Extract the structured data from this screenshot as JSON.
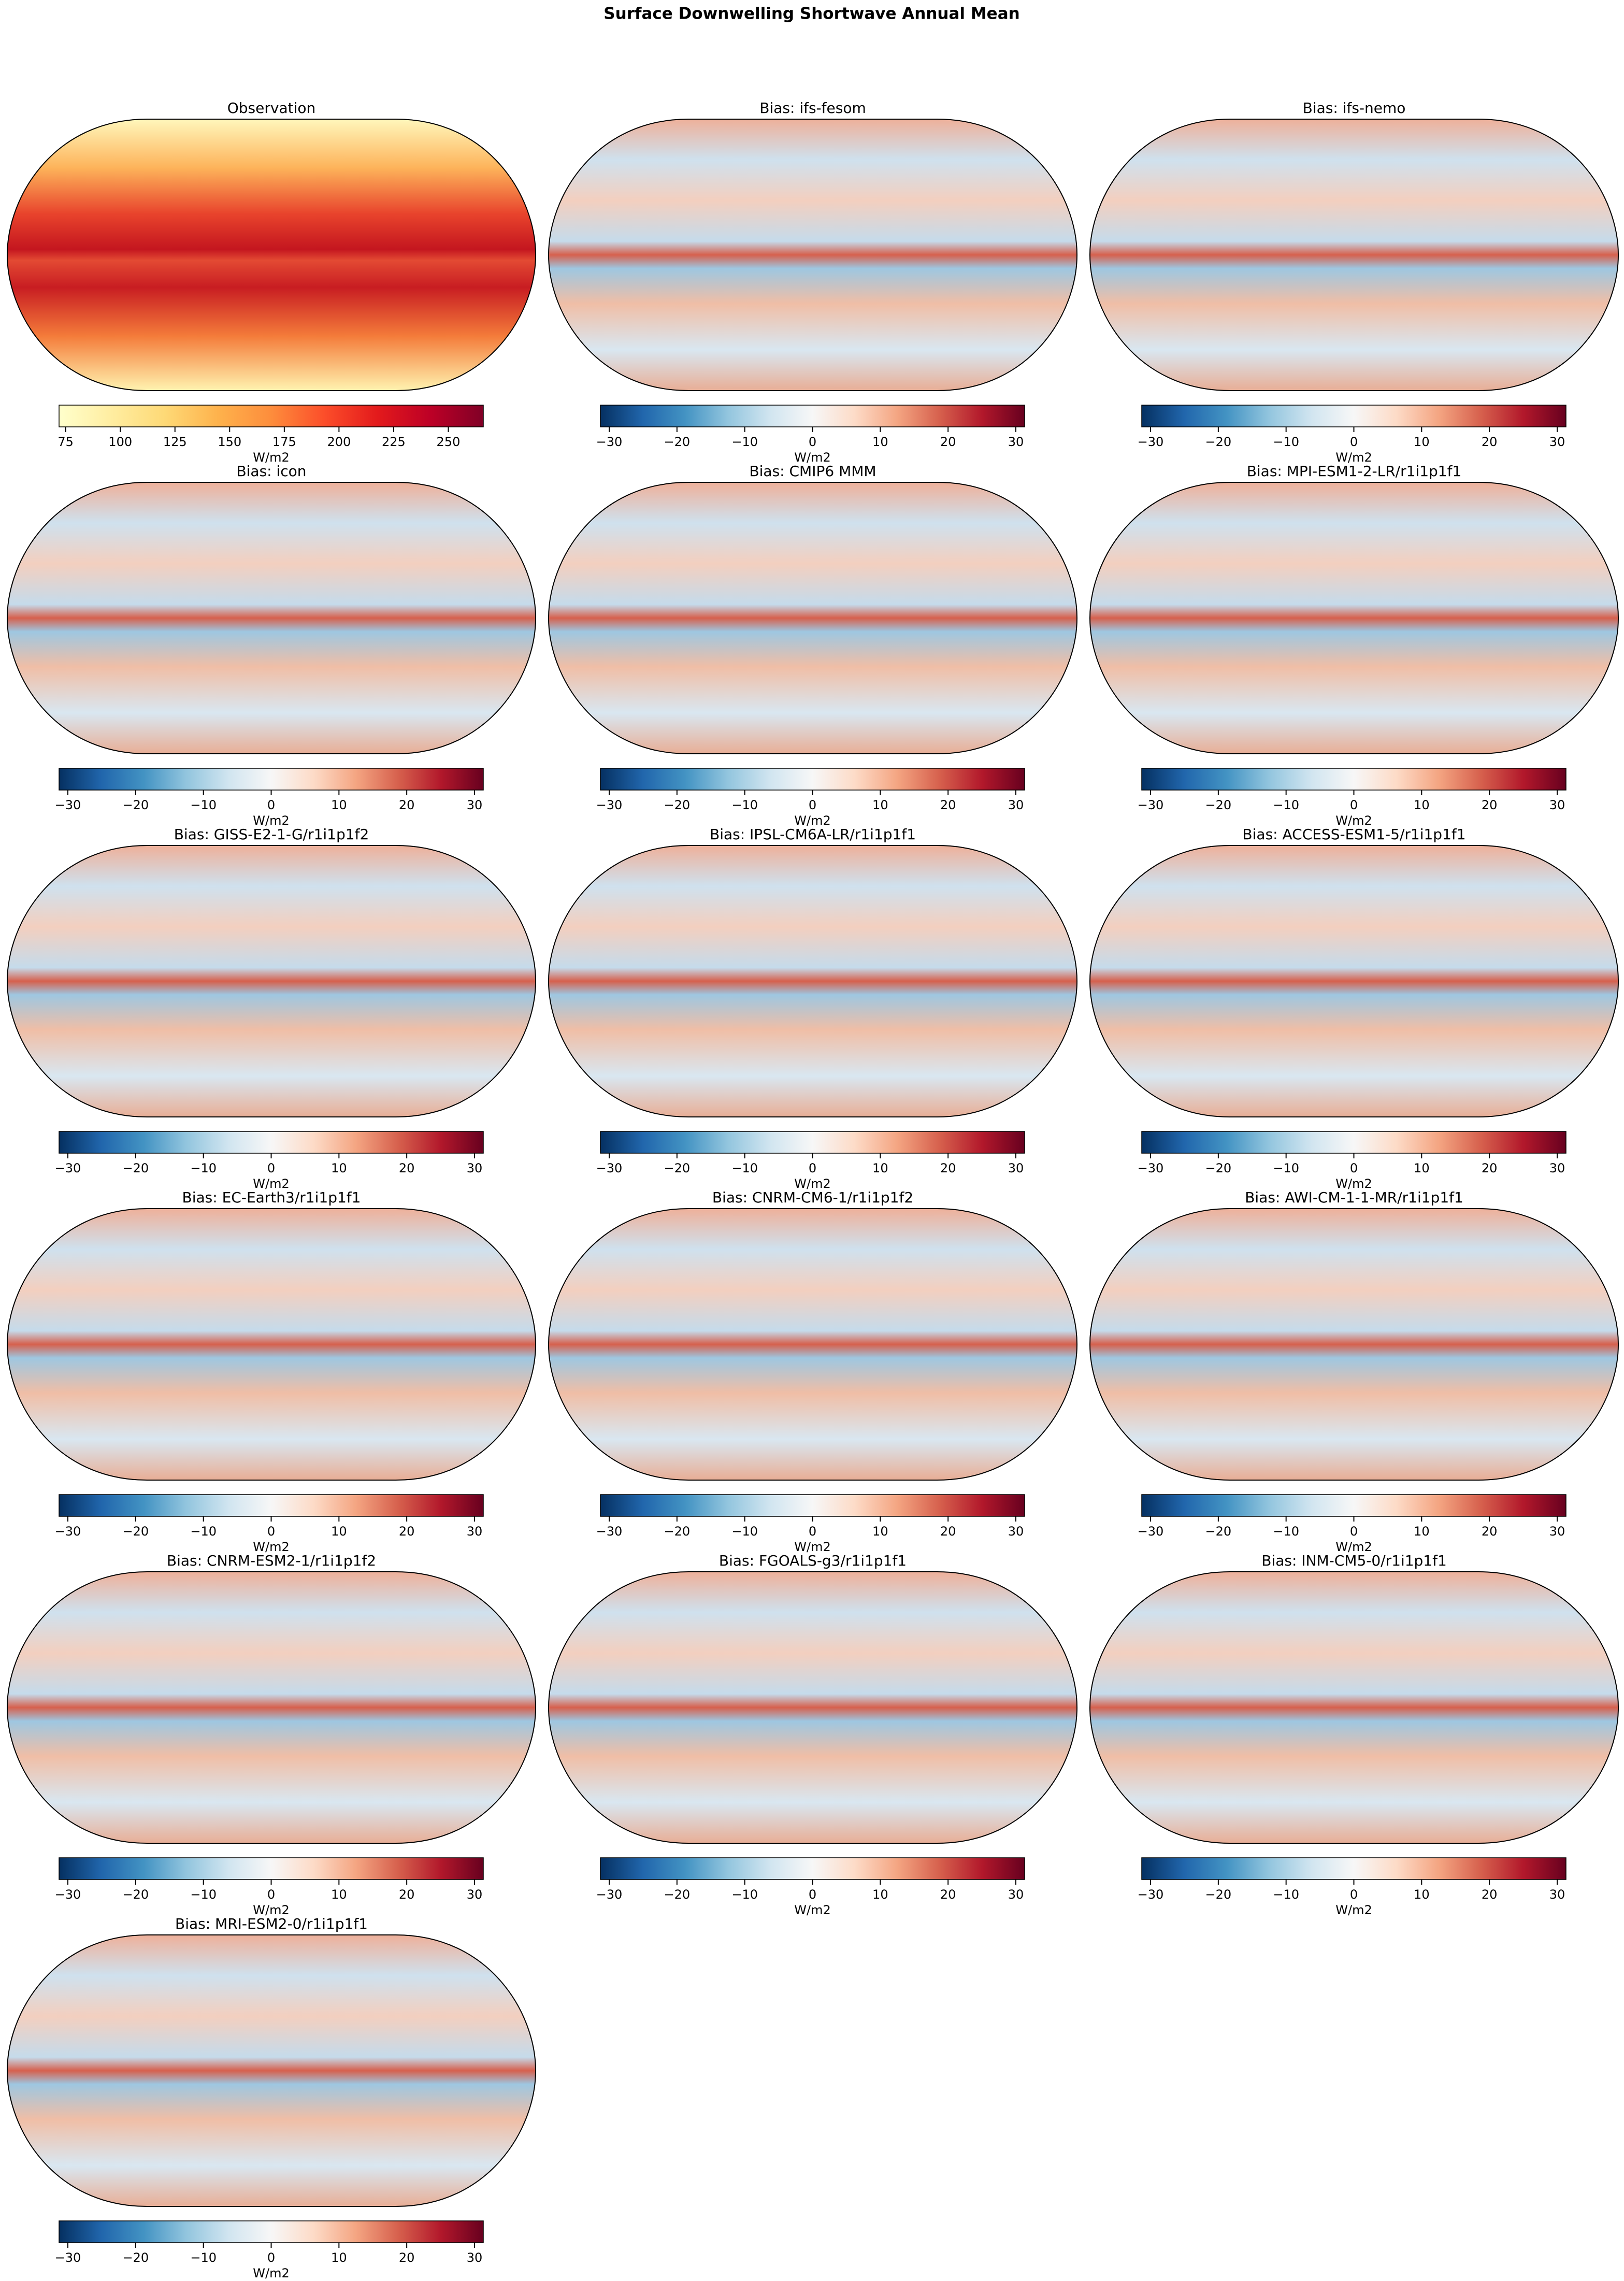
{
  "title": "Surface Downwelling Shortwave Annual Mean",
  "panels": [
    {
      "title": "Observation",
      "cmap": "YlOrRd",
      "colorbar": {
        "label": "W/m2",
        "lim": [
          72,
          266
        ],
        "ticks": [
          75,
          100,
          125,
          150,
          175,
          200,
          225,
          250
        ]
      }
    },
    {
      "title": "Bias: ifs-fesom",
      "cmap": "RdBu_r",
      "colorbar": {
        "label": "W/m2",
        "lim": [
          -31.3,
          31.3
        ],
        "ticks": [
          {
            "value": -30,
            "label": "−30"
          },
          {
            "value": -20,
            "label": "−20"
          },
          {
            "value": -10,
            "label": "−10"
          },
          0,
          10,
          20,
          30
        ]
      }
    },
    {
      "title": "Bias: ifs-nemo",
      "cmap": "RdBu_r",
      "colorbar": {
        "label": "W/m2",
        "lim": [
          -31.3,
          31.3
        ],
        "ticks": [
          {
            "value": -30,
            "label": "−30"
          },
          {
            "value": -20,
            "label": "−20"
          },
          {
            "value": -10,
            "label": "−10"
          },
          0,
          10,
          20,
          30
        ]
      }
    },
    {
      "title": "Bias: icon",
      "cmap": "RdBu_r",
      "colorbar": {
        "label": "W/m2",
        "lim": [
          -31.3,
          31.3
        ],
        "ticks": [
          {
            "value": -30,
            "label": "−30"
          },
          {
            "value": -20,
            "label": "−20"
          },
          {
            "value": -10,
            "label": "−10"
          },
          0,
          10,
          20,
          30
        ]
      }
    },
    {
      "title": "Bias: CMIP6 MMM",
      "cmap": "RdBu_r",
      "colorbar": {
        "label": "W/m2",
        "lim": [
          -31.3,
          31.3
        ],
        "ticks": [
          {
            "value": -30,
            "label": "−30"
          },
          {
            "value": -20,
            "label": "−20"
          },
          {
            "value": -10,
            "label": "−10"
          },
          0,
          10,
          20,
          30
        ]
      }
    },
    {
      "title": "Bias: MPI-ESM1-2-LR/r1i1p1f1",
      "cmap": "RdBu_r",
      "colorbar": {
        "label": "W/m2",
        "lim": [
          -31.3,
          31.3
        ],
        "ticks": [
          {
            "value": -30,
            "label": "−30"
          },
          {
            "value": -20,
            "label": "−20"
          },
          {
            "value": -10,
            "label": "−10"
          },
          0,
          10,
          20,
          30
        ]
      }
    },
    {
      "title": "Bias: GISS-E2-1-G/r1i1p1f2",
      "cmap": "RdBu_r",
      "colorbar": {
        "label": "W/m2",
        "lim": [
          -31.3,
          31.3
        ],
        "ticks": [
          {
            "value": -30,
            "label": "−30"
          },
          {
            "value": -20,
            "label": "−20"
          },
          {
            "value": -10,
            "label": "−10"
          },
          0,
          10,
          20,
          30
        ]
      }
    },
    {
      "title": "Bias: IPSL-CM6A-LR/r1i1p1f1",
      "cmap": "RdBu_r",
      "colorbar": {
        "label": "W/m2",
        "lim": [
          -31.3,
          31.3
        ],
        "ticks": [
          {
            "value": -30,
            "label": "−30"
          },
          {
            "value": -20,
            "label": "−20"
          },
          {
            "value": -10,
            "label": "−10"
          },
          0,
          10,
          20,
          30
        ]
      }
    },
    {
      "title": "Bias: ACCESS-ESM1-5/r1i1p1f1",
      "cmap": "RdBu_r",
      "colorbar": {
        "label": "W/m2",
        "lim": [
          -31.3,
          31.3
        ],
        "ticks": [
          {
            "value": -30,
            "label": "−30"
          },
          {
            "value": -20,
            "label": "−20"
          },
          {
            "value": -10,
            "label": "−10"
          },
          0,
          10,
          20,
          30
        ]
      }
    },
    {
      "title": "Bias: EC-Earth3/r1i1p1f1",
      "cmap": "RdBu_r",
      "colorbar": {
        "label": "W/m2",
        "lim": [
          -31.3,
          31.3
        ],
        "ticks": [
          {
            "value": -30,
            "label": "−30"
          },
          {
            "value": -20,
            "label": "−20"
          },
          {
            "value": -10,
            "label": "−10"
          },
          0,
          10,
          20,
          30
        ]
      }
    },
    {
      "title": "Bias: CNRM-CM6-1/r1i1p1f2",
      "cmap": "RdBu_r",
      "colorbar": {
        "label": "W/m2",
        "lim": [
          -31.3,
          31.3
        ],
        "ticks": [
          {
            "value": -30,
            "label": "−30"
          },
          {
            "value": -20,
            "label": "−20"
          },
          {
            "value": -10,
            "label": "−10"
          },
          0,
          10,
          20,
          30
        ]
      }
    },
    {
      "title": "Bias: AWI-CM-1-1-MR/r1i1p1f1",
      "cmap": "RdBu_r",
      "colorbar": {
        "label": "W/m2",
        "lim": [
          -31.3,
          31.3
        ],
        "ticks": [
          {
            "value": -30,
            "label": "−30"
          },
          {
            "value": -20,
            "label": "−20"
          },
          {
            "value": -10,
            "label": "−10"
          },
          0,
          10,
          20,
          30
        ]
      }
    },
    {
      "title": "Bias: CNRM-ESM2-1/r1i1p1f2",
      "cmap": "RdBu_r",
      "colorbar": {
        "label": "W/m2",
        "lim": [
          -31.3,
          31.3
        ],
        "ticks": [
          {
            "value": -30,
            "label": "−30"
          },
          {
            "value": -20,
            "label": "−20"
          },
          {
            "value": -10,
            "label": "−10"
          },
          0,
          10,
          20,
          30
        ]
      }
    },
    {
      "title": "Bias: FGOALS-g3/r1i1p1f1",
      "cmap": "RdBu_r",
      "colorbar": {
        "label": "W/m2",
        "lim": [
          -31.3,
          31.3
        ],
        "ticks": [
          {
            "value": -30,
            "label": "−30"
          },
          {
            "value": -20,
            "label": "−20"
          },
          {
            "value": -10,
            "label": "−10"
          },
          0,
          10,
          20,
          30
        ]
      }
    },
    {
      "title": "Bias: INM-CM5-0/r1i1p1f1",
      "cmap": "RdBu_r",
      "colorbar": {
        "label": "W/m2",
        "lim": [
          -31.3,
          31.3
        ],
        "ticks": [
          {
            "value": -30,
            "label": "−30"
          },
          {
            "value": -20,
            "label": "−20"
          },
          {
            "value": -10,
            "label": "−10"
          },
          0,
          10,
          20,
          30
        ]
      }
    },
    {
      "title": "Bias: MRI-ESM2-0/r1i1p1f1",
      "cmap": "RdBu_r",
      "colorbar": {
        "label": "W/m2",
        "lim": [
          -31.3,
          31.3
        ],
        "ticks": [
          {
            "value": -30,
            "label": "−30"
          },
          {
            "value": -20,
            "label": "−20"
          },
          {
            "value": -10,
            "label": "−10"
          },
          0,
          10,
          20,
          30
        ]
      }
    }
  ]
}
